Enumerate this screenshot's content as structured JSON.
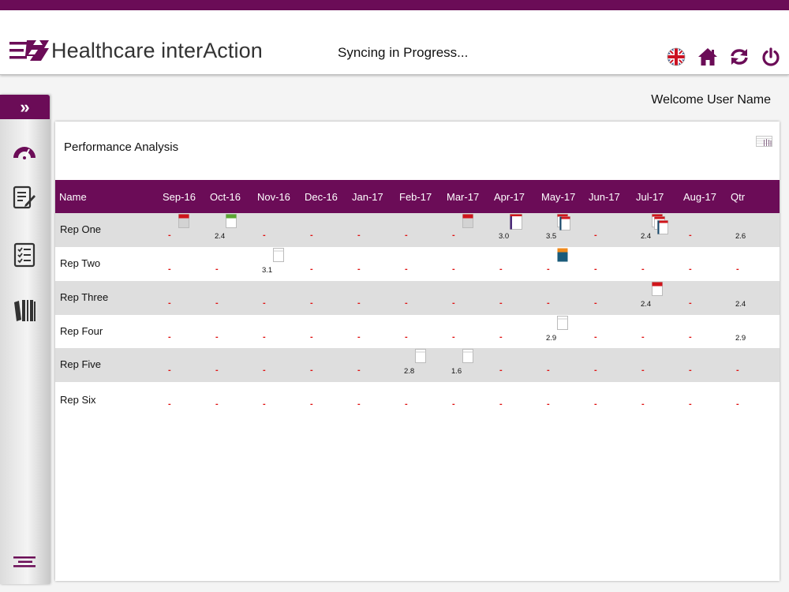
{
  "app": {
    "title_part1": "Healthcare ",
    "title_part2": "interAction",
    "sync_status": "Syncing in Progress...",
    "brand_color": "#6b0c57",
    "header_icons": [
      "uk-flag-icon",
      "home-icon",
      "sync-icon",
      "power-icon"
    ]
  },
  "sidebar": {
    "toggle_label": "»",
    "icons": [
      "dashboard-gauge-icon",
      "document-edit-icon",
      "checklist-icon",
      "library-books-icon",
      "menu-icon"
    ]
  },
  "welcome": "Welcome User Name",
  "panel": {
    "title": "Performance Analysis",
    "columns": [
      "Name",
      "Sep-16",
      "Oct-16",
      "Nov-16",
      "Dec-16",
      "Jan-17",
      "Feb-17",
      "Mar-17",
      "Apr-17",
      "May-17",
      "Jun-17",
      "Jul-17",
      "Aug-17",
      "Qtr"
    ],
    "rows": [
      {
        "name": "Rep One",
        "cells": [
          {
            "text": "-",
            "icon": "gray-red-card"
          },
          {
            "text": "2.4",
            "icon": "green-card"
          },
          {
            "text": "-"
          },
          {
            "text": "-"
          },
          {
            "text": "-"
          },
          {
            "text": "-"
          },
          {
            "text": "-",
            "icon": "gray-red-card"
          },
          {
            "text": "3.0",
            "icon": "purple-red-card"
          },
          {
            "text": "3.5",
            "icon": "stacked-cards-2"
          },
          {
            "text": "-"
          },
          {
            "text": "2.4",
            "icon": "stacked-cards-3"
          },
          {
            "text": "-"
          },
          {
            "text": "2.6"
          }
        ]
      },
      {
        "name": "Rep Two",
        "cells": [
          {
            "text": "-"
          },
          {
            "text": "-"
          },
          {
            "text": "3.1",
            "icon": "blank-card"
          },
          {
            "text": "-"
          },
          {
            "text": "-"
          },
          {
            "text": "-"
          },
          {
            "text": "-"
          },
          {
            "text": "-"
          },
          {
            "text": "-",
            "icon": "orange-blue-card"
          },
          {
            "text": "-"
          },
          {
            "text": "-"
          },
          {
            "text": "-"
          },
          {
            "text": "-"
          }
        ]
      },
      {
        "name": "Rep Three",
        "cells": [
          {
            "text": "-"
          },
          {
            "text": "-"
          },
          {
            "text": "-"
          },
          {
            "text": "-"
          },
          {
            "text": "-"
          },
          {
            "text": "-"
          },
          {
            "text": "-"
          },
          {
            "text": "-"
          },
          {
            "text": "-"
          },
          {
            "text": "-"
          },
          {
            "text": "2.4",
            "icon": "red-card"
          },
          {
            "text": "-"
          },
          {
            "text": "2.4"
          }
        ]
      },
      {
        "name": "Rep Four",
        "cells": [
          {
            "text": "-"
          },
          {
            "text": "-"
          },
          {
            "text": "-"
          },
          {
            "text": "-"
          },
          {
            "text": "-"
          },
          {
            "text": "-"
          },
          {
            "text": "-"
          },
          {
            "text": "-"
          },
          {
            "text": "2.9",
            "icon": "blank-card"
          },
          {
            "text": "-"
          },
          {
            "text": "-"
          },
          {
            "text": "-"
          },
          {
            "text": "2.9"
          }
        ]
      },
      {
        "name": "Rep Five",
        "cells": [
          {
            "text": "-"
          },
          {
            "text": "-"
          },
          {
            "text": "-"
          },
          {
            "text": "-"
          },
          {
            "text": "-"
          },
          {
            "text": "2.8",
            "icon": "blank-card"
          },
          {
            "text": "1.6",
            "icon": "blank-card"
          },
          {
            "text": "-"
          },
          {
            "text": "-"
          },
          {
            "text": "-"
          },
          {
            "text": "-"
          },
          {
            "text": "-"
          },
          {
            "text": "-"
          }
        ]
      },
      {
        "name": "Rep Six",
        "cells": [
          {
            "text": "-"
          },
          {
            "text": "-"
          },
          {
            "text": "-"
          },
          {
            "text": "-"
          },
          {
            "text": "-"
          },
          {
            "text": "-"
          },
          {
            "text": "-"
          },
          {
            "text": "-"
          },
          {
            "text": "-"
          },
          {
            "text": "-"
          },
          {
            "text": "-"
          },
          {
            "text": "-"
          },
          {
            "text": "-"
          }
        ]
      }
    ]
  }
}
